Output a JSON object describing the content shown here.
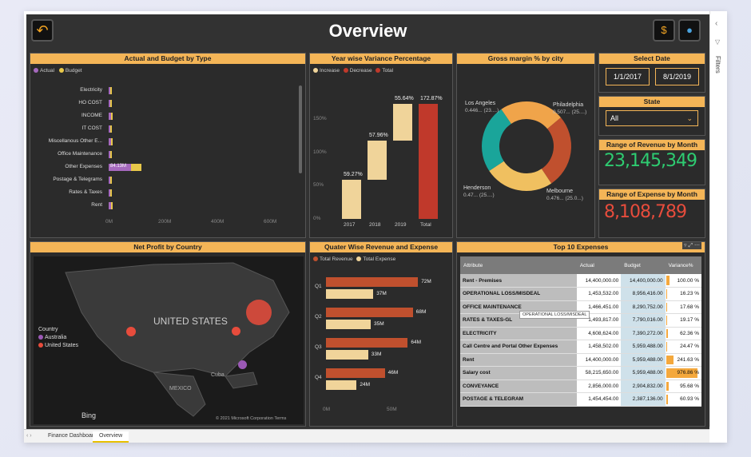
{
  "title": "Overview",
  "icons": {
    "back": "back-arrow-icon",
    "dollar": "dollar-coin-icon",
    "avatar": "user-avatar-icon"
  },
  "colors": {
    "accent": "#f4b557",
    "actual": "#a569bd",
    "budget": "#e8c84a",
    "increase": "#f0d49a",
    "decrease": "#c0392b"
  },
  "actual_budget": {
    "title": "Actual and Budget by Type",
    "legend": [
      "Actual",
      "Budget"
    ],
    "rows": [
      {
        "label": "Electricity",
        "actual": 0.5,
        "budget": 3
      },
      {
        "label": "HO COST",
        "actual": 0.5,
        "budget": 2
      },
      {
        "label": "INCOME",
        "actual": 8,
        "budget": 5
      },
      {
        "label": "IT COST",
        "actual": 0.5,
        "budget": 2
      },
      {
        "label": "Miscellanous Other E...",
        "actual": 8,
        "budget": 6
      },
      {
        "label": "Office Maintenance",
        "actual": 3,
        "budget": 5
      },
      {
        "label": "Other Expenses",
        "actual": 84.13,
        "budget": 40
      },
      {
        "label": "Postage & Telegrams",
        "actual": 0.5,
        "budget": 2
      },
      {
        "label": "Rates & Taxes",
        "actual": 0.5,
        "budget": 3
      },
      {
        "label": "Rent",
        "actual": 8,
        "budget": 4
      }
    ],
    "data_label": "84.13M",
    "x_ticks": [
      "0M",
      "200M",
      "400M",
      "600M"
    ]
  },
  "variance": {
    "title": "Year wise Variance Percentage",
    "legend": [
      "Increase",
      "Decrease",
      "Total"
    ],
    "bars": [
      {
        "label": "2017",
        "value": 59.27,
        "text": "59.27%"
      },
      {
        "label": "2018",
        "value": 57.96,
        "text": "57.96%"
      },
      {
        "label": "2019",
        "value": 55.64,
        "text": "55.64%"
      },
      {
        "label": "Total",
        "value": 172.87,
        "text": "172.87%"
      }
    ],
    "y_ticks": [
      "0%",
      "50%",
      "100%",
      "150%"
    ]
  },
  "gross_margin": {
    "title": "Gross margin % by city",
    "cities": [
      {
        "name": "Los Angeles",
        "detail": "0.446... (23....)",
        "value": 0.446,
        "color": "#f0a44a"
      },
      {
        "name": "Philadelphia",
        "detail": "0.507... (25....)",
        "value": 0.507,
        "color": "#c0502e"
      },
      {
        "name": "Melbourne",
        "detail": "0.476... (25.0...)",
        "value": 0.476,
        "color": "#f0c060"
      },
      {
        "name": "Henderson",
        "detail": "0.47... (25....)",
        "value": 0.47,
        "color": "#1aa59a"
      }
    ]
  },
  "select_date": {
    "title": "Select Date",
    "start": "1/1/2017",
    "end": "8/1/2019"
  },
  "state": {
    "title": "State",
    "value": "All"
  },
  "revenue": {
    "title": "Range of Revenue by Month",
    "value": "23,145,349"
  },
  "expense": {
    "title": "Range of Expense by Month",
    "value": "8,108,789"
  },
  "net_profit": {
    "title": "Net Profit by Country",
    "legend_title": "Country",
    "legend": [
      "Australia",
      "United States"
    ],
    "map_labels": [
      "UNITED STATES",
      "MEXICO",
      "Cuba"
    ],
    "bing": "Bing",
    "copyright": "© 2021 Microsoft Corporation Terms"
  },
  "quarter": {
    "title": "Quater Wise Revenue and Expense",
    "legend": [
      "Total Revenue",
      "Total Expense"
    ],
    "rows": [
      {
        "label": "Q1",
        "revenue": 72,
        "expense": 37,
        "rev_text": "72M",
        "exp_text": "37M"
      },
      {
        "label": "Q2",
        "revenue": 68,
        "expense": 35,
        "rev_text": "68M",
        "exp_text": "35M"
      },
      {
        "label": "Q3",
        "revenue": 64,
        "expense": 33,
        "rev_text": "64M",
        "exp_text": "33M"
      },
      {
        "label": "Q4",
        "revenue": 46,
        "expense": 24,
        "rev_text": "46M",
        "exp_text": "24M"
      }
    ],
    "x_ticks": [
      "0M",
      "50M"
    ]
  },
  "top10": {
    "title": "Top 10 Expenses",
    "columns": [
      "Attribute",
      "Actual",
      "Budget",
      "Variance%"
    ],
    "tooltip": "OPERATIONAL LOSS/MISDEAL",
    "rows": [
      {
        "attr": "Rent - Premises",
        "actual": "14,400,000.00",
        "budget": "14,400,000.00",
        "variance": "100.00 %",
        "v": 100
      },
      {
        "attr": "OPERATIONAL LOSS/MISDEAL",
        "actual": "1,453,532.00",
        "budget": "8,956,416.00",
        "variance": "16.23 %",
        "v": 16
      },
      {
        "attr": "OFFICE MAINTENANCE",
        "actual": "1,466,451.00",
        "budget": "8,290,752.00",
        "variance": "17.68 %",
        "v": 18
      },
      {
        "attr": "RATES & TAXES-GL",
        "actual": "1,493,817.00",
        "budget": "7,790,016.00",
        "variance": "19.17 %",
        "v": 19
      },
      {
        "attr": "ELECTRICITY",
        "actual": "4,608,624.00",
        "budget": "7,390,272.00",
        "variance": "62.36 %",
        "v": 62
      },
      {
        "attr": "Call Centre and Portal Other Expenses",
        "actual": "1,458,502.00",
        "budget": "5,959,488.00",
        "variance": "24.47 %",
        "v": 24
      },
      {
        "attr": "Rent",
        "actual": "14,400,000.00",
        "budget": "5,959,488.00",
        "variance": "241.63 %",
        "v": 242
      },
      {
        "attr": "Salary cost",
        "actual": "58,215,650.00",
        "budget": "5,959,488.00",
        "variance": "976.86 %",
        "v": 977
      },
      {
        "attr": "CONVEYANCE",
        "actual": "2,856,000.00",
        "budget": "2,904,832.00",
        "variance": "95.68 %",
        "v": 96
      },
      {
        "attr": "POSTAGE & TELEGRAM",
        "actual": "1,454,454.00",
        "budget": "2,387,136.00",
        "variance": "60.93 %",
        "v": 61
      }
    ]
  },
  "tabs": [
    "Finance Dashboard",
    "Overview"
  ],
  "filters_label": "Filters"
}
